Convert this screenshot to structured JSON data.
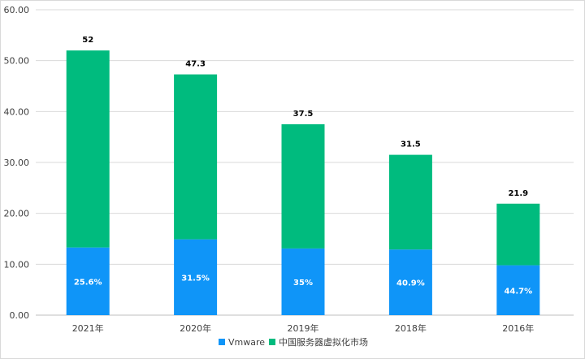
{
  "chart_data": {
    "type": "bar",
    "stacked": true,
    "categories": [
      "2021年",
      "2020年",
      "2019年",
      "2018年",
      "2016年"
    ],
    "ylim": [
      0,
      60
    ],
    "yticks": [
      "0.00",
      "10.00",
      "20.00",
      "30.00",
      "40.00",
      "50.00",
      "60.00"
    ],
    "grid": true,
    "legend_position": "bottom",
    "totals": [
      52,
      47.3,
      37.5,
      31.5,
      21.9
    ],
    "total_labels": [
      "52",
      "47.3",
      "37.5",
      "31.5",
      "21.9"
    ],
    "series": [
      {
        "name": "Vmware",
        "color": "#0f95f8",
        "values": [
          13.3,
          14.9,
          13.1,
          12.9,
          9.8
        ],
        "labels": [
          "25.6%",
          "31.5%",
          "35%",
          "40.9%",
          "44.7%"
        ]
      },
      {
        "name": "中国服务器虚拟化市场",
        "color": "#00bb7e",
        "values": [
          38.7,
          32.4,
          24.4,
          18.6,
          12.1
        ]
      }
    ]
  }
}
